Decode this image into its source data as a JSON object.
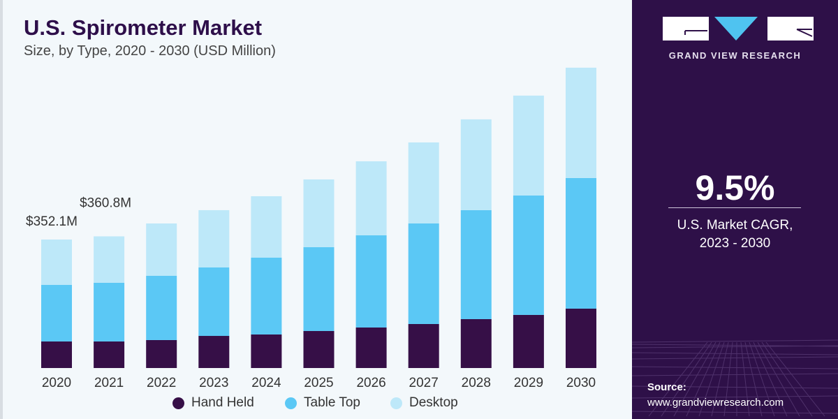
{
  "colors": {
    "hand_held": "#360f47",
    "table_top": "#5bc8f5",
    "desktop": "#bde8f9",
    "panel": "#2e1048",
    "accent": "#4fc3f0"
  },
  "brand": {
    "name": "GRAND VIEW RESEARCH"
  },
  "cagr": {
    "value": "9.5%",
    "label_line1": "U.S. Market CAGR,",
    "label_line2": "2023 - 2030"
  },
  "source": {
    "heading": "Source:",
    "url": "www.grandviewresearch.com"
  },
  "chart_data": {
    "type": "bar",
    "stacked": true,
    "title": "U.S. Spirometer Market",
    "subtitle": "Size, by Type, 2020 - 2030 (USD Million)",
    "categories": [
      "2020",
      "2021",
      "2022",
      "2023",
      "2024",
      "2025",
      "2026",
      "2027",
      "2028",
      "2029",
      "2030"
    ],
    "series": [
      {
        "name": "Hand Held",
        "values": [
          72.7,
          72.7,
          76.6,
          88.0,
          91.9,
          101.4,
          111.0,
          120.6,
          134.0,
          145.5,
          162.7
        ]
      },
      {
        "name": "Table Top",
        "values": [
          155.0,
          160.8,
          176.0,
          187.6,
          210.5,
          229.7,
          252.6,
          275.6,
          298.6,
          327.3,
          357.9
        ]
      },
      {
        "name": "Desktop",
        "values": [
          124.4,
          127.3,
          143.5,
          157.0,
          168.4,
          185.7,
          202.9,
          222.0,
          248.8,
          273.7,
          302.4
        ]
      }
    ],
    "annotations": [
      {
        "category": "2020",
        "text": "$352.1M"
      },
      {
        "category": "2021",
        "text": "$360.8M"
      }
    ],
    "legend": "bottom",
    "grid": false
  }
}
